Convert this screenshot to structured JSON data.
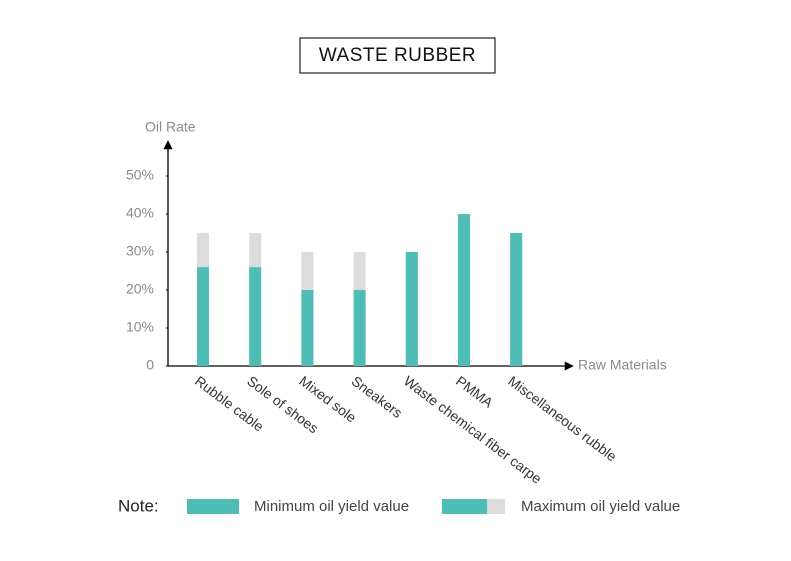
{
  "chart_data": {
    "type": "bar",
    "title": "WASTE RUBBER",
    "y_label": "Oil Rate",
    "x_label": "Raw Materials",
    "legend_title": "Note:",
    "categories": [
      "Rubble cable",
      "Sole of shoes",
      "Mixed sole",
      "Sneakers",
      "Waste chemical fiber carpe",
      "PMMA",
      "Miscellaneous rubble"
    ],
    "series": [
      {
        "name": "Minimum oil yield value",
        "color": "#4dbdb5",
        "values": [
          26,
          26,
          20,
          20,
          30,
          40,
          35
        ]
      },
      {
        "name": "Maximum oil yield value",
        "color": "#dcdcdc",
        "values": [
          35,
          35,
          30,
          30,
          30,
          40,
          35
        ]
      }
    ],
    "ylim": [
      0,
      58
    ],
    "yticks": [
      0,
      {
        "value": 10,
        "label": "10%"
      },
      {
        "value": 20,
        "label": "20%"
      },
      {
        "value": 30,
        "label": "30%"
      },
      {
        "value": 40,
        "label": "40%"
      },
      {
        "value": 50,
        "label": "50%"
      }
    ]
  }
}
